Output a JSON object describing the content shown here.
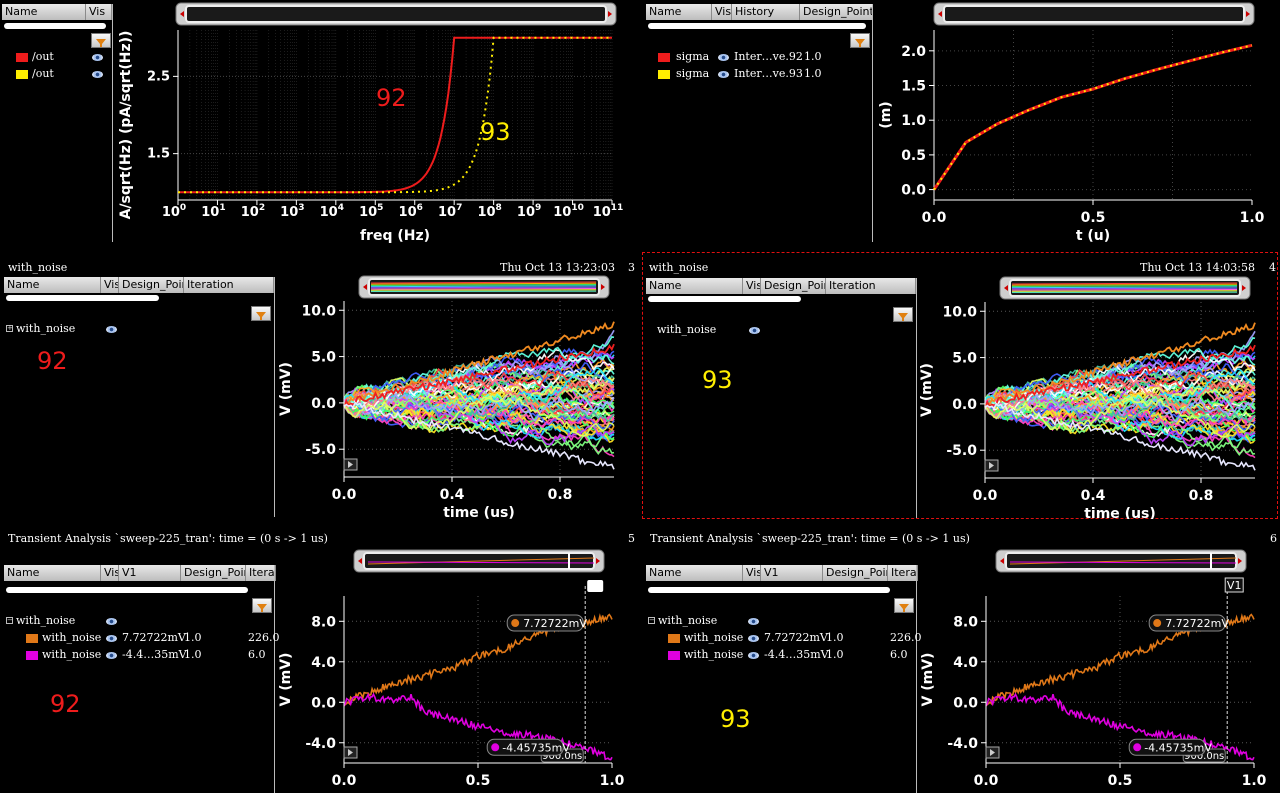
{
  "colors": {
    "red": "#ee1c1c",
    "yellow": "#ffee00",
    "orange": "#e07818",
    "magenta": "#e000e0",
    "bg": "#000000"
  },
  "p1": {
    "legend_cols": [
      "Name",
      "Vis"
    ],
    "rows": [
      {
        "name": "/out",
        "color": "#ee1c1c"
      },
      {
        "name": "/out",
        "color": "#ffee00"
      }
    ],
    "label_red": "92",
    "label_yellow": "93",
    "chart_data": {
      "type": "line",
      "xlabel": "freq (Hz)",
      "ylabel": "A/sqrt(Hz) (pA/sqrt(Hz))",
      "x_scale": "log",
      "x_ticks": [
        "10^0",
        "10^1",
        "10^2",
        "10^3",
        "10^4",
        "10^5",
        "10^6",
        "10^7",
        "10^8",
        "10^9",
        "10^10",
        "10^11"
      ],
      "y_ticks": [
        "1.5",
        "2.5"
      ],
      "ylim": [
        0.9,
        3.1
      ],
      "series": [
        {
          "color": "#ee1c1c",
          "style": "solid",
          "x": [
            1,
            100000,
            1000000,
            3000000,
            10000000,
            100000000000
          ],
          "values": [
            1.0,
            1.02,
            1.2,
            1.8,
            3.0,
            3.0
          ]
        },
        {
          "color": "#ffee00",
          "style": "dotted",
          "x": [
            1,
            1000000,
            10000000,
            30000000,
            100000000,
            100000000000
          ],
          "values": [
            1.0,
            1.02,
            1.2,
            1.8,
            3.0,
            3.0
          ]
        }
      ]
    }
  },
  "p2": {
    "legend_cols": [
      "Name",
      "Vis",
      "History",
      "Design_Point"
    ],
    "rows": [
      {
        "name": "sigma",
        "history": "Inter…ve.92",
        "dp": "1.0",
        "color": "#ee1c1c"
      },
      {
        "name": "sigma",
        "history": "Inter…ve.93",
        "dp": "1.0",
        "color": "#ffee00"
      }
    ],
    "chart_data": {
      "type": "line",
      "xlabel": "t (u)",
      "ylabel": "(m)",
      "xlim": [
        0,
        1
      ],
      "ylim": [
        -0.15,
        2.3
      ],
      "x_ticks": [
        "0.0",
        "0.5",
        "1.0"
      ],
      "y_ticks": [
        "0.0",
        "0.5",
        "1.0",
        "1.5",
        "2.0"
      ],
      "series": [
        {
          "color": "#ee1c1c",
          "style": "solid",
          "x": [
            0,
            0.1,
            0.2,
            0.3,
            0.4,
            0.5,
            0.6,
            0.7,
            0.8,
            0.9,
            1.0
          ],
          "values": [
            0.0,
            0.68,
            0.95,
            1.15,
            1.33,
            1.45,
            1.6,
            1.73,
            1.85,
            1.97,
            2.08
          ]
        },
        {
          "color": "#ffee00",
          "style": "dotted",
          "x": [
            0,
            0.1,
            0.2,
            0.3,
            0.4,
            0.5,
            0.6,
            0.7,
            0.8,
            0.9,
            1.0
          ],
          "values": [
            0.0,
            0.68,
            0.95,
            1.15,
            1.33,
            1.45,
            1.6,
            1.73,
            1.85,
            1.97,
            2.08
          ]
        }
      ]
    }
  },
  "p3": {
    "title": "with_noise",
    "timestamp": "Thu Oct 13 13:23:03",
    "index": "3",
    "legend_cols": [
      "Name",
      "Vis",
      "Design_Point",
      "Iteration"
    ],
    "tree_label": "with_noise",
    "big_label": "92",
    "chart_data": {
      "type": "line",
      "xlabel": "time (us)",
      "ylabel": "V (mV)",
      "xlim": [
        0,
        1
      ],
      "ylim": [
        -8,
        11
      ],
      "x_ticks": [
        "0.0",
        "0.4",
        "0.8"
      ],
      "y_ticks": [
        "10.0",
        "5.0",
        "0.0",
        "-5.0"
      ],
      "note": "Monte Carlo random-walk traces; upper envelope ends near 8.5 mV, lower near -7 mV"
    }
  },
  "p4": {
    "title": "with_noise",
    "timestamp": "Thu Oct 13 14:03:58",
    "index": "4",
    "legend_cols": [
      "Name",
      "Vis",
      "Design_Point",
      "Iteration"
    ],
    "tree_label": "with_noise",
    "big_label": "93",
    "chart_data": {
      "type": "line",
      "xlabel": "time (us)",
      "ylabel": "V (mV)",
      "xlim": [
        0,
        1
      ],
      "ylim": [
        -8,
        11
      ],
      "x_ticks": [
        "0.0",
        "0.4",
        "0.8"
      ],
      "y_ticks": [
        "10.0",
        "5.0",
        "0.0",
        "-5.0"
      ]
    }
  },
  "p5": {
    "title": "Transient Analysis `sweep-225_tran': time = (0 s -> 1 us)",
    "index": "5",
    "legend_cols": [
      "Name",
      "Vis",
      "V1",
      "Design_Point",
      "Iteration"
    ],
    "tree_label": "with_noise",
    "rows": [
      {
        "name": "with_noise",
        "v1": "7.72722mV",
        "dp": "1.0",
        "iter": "226.0",
        "color": "#e07818"
      },
      {
        "name": "with_noise",
        "v1": "-4.4…35mV",
        "dp": "1.0",
        "iter": "6.0",
        "color": "#e000e0"
      }
    ],
    "big_label": "92",
    "marker_top": "7.72722mV",
    "marker_bot": "-4.45735mV",
    "cursor_label": "900.0ns",
    "cursor_name": "",
    "chart_data": {
      "type": "line",
      "xlabel": "time (us)",
      "ylabel": "V (mV)",
      "xlim": [
        0,
        1
      ],
      "ylim": [
        -6,
        10.5
      ],
      "x_ticks": [
        "0.0",
        "0.5",
        "1.0"
      ],
      "y_ticks": [
        "8.0",
        "4.0",
        "0.0",
        "-4.0"
      ],
      "series": [
        {
          "color": "#e07818",
          "x": [
            0,
            0.1,
            0.2,
            0.3,
            0.4,
            0.5,
            0.6,
            0.7,
            0.8,
            0.9,
            1.0
          ],
          "values": [
            0.0,
            1.0,
            2.0,
            2.6,
            3.3,
            4.6,
            5.3,
            6.5,
            7.5,
            7.8,
            8.5
          ]
        },
        {
          "color": "#e000e0",
          "x": [
            0,
            0.1,
            0.2,
            0.25,
            0.3,
            0.4,
            0.5,
            0.6,
            0.7,
            0.8,
            0.9,
            1.0
          ],
          "values": [
            0.0,
            0.5,
            0.3,
            0.6,
            -1.0,
            -1.6,
            -2.4,
            -3.0,
            -3.3,
            -3.8,
            -4.45,
            -5.6
          ]
        }
      ]
    }
  },
  "p6": {
    "title": "Transient Analysis `sweep-225_tran': time = (0 s -> 1 us)",
    "index": "6",
    "legend_cols": [
      "Name",
      "Vis",
      "V1",
      "Design_Point",
      "Iteration"
    ],
    "tree_label": "with_noise",
    "rows": [
      {
        "name": "with_noise",
        "v1": "7.72722mV",
        "dp": "1.0",
        "iter": "226.0",
        "color": "#e07818"
      },
      {
        "name": "with_noise",
        "v1": "-4.4…35mV",
        "dp": "1.0",
        "iter": "6.0",
        "color": "#e000e0"
      }
    ],
    "big_label": "93",
    "marker_top": "7.72722mV",
    "marker_bot": "-4.45735mV",
    "cursor_label": "900.0ns",
    "cursor_name": "V1",
    "chart_data": {
      "type": "line",
      "xlabel": "time (us)",
      "ylabel": "V (mV)",
      "xlim": [
        0,
        1
      ],
      "ylim": [
        -6,
        10.5
      ],
      "x_ticks": [
        "0.0",
        "0.5",
        "1.0"
      ],
      "y_ticks": [
        "8.0",
        "4.0",
        "0.0",
        "-4.0"
      ],
      "series": [
        {
          "color": "#e07818",
          "x": [
            0,
            0.1,
            0.2,
            0.3,
            0.4,
            0.5,
            0.6,
            0.7,
            0.8,
            0.9,
            1.0
          ],
          "values": [
            0.0,
            1.0,
            2.0,
            2.6,
            3.3,
            4.6,
            5.3,
            6.5,
            7.5,
            7.8,
            8.5
          ]
        },
        {
          "color": "#e000e0",
          "x": [
            0,
            0.1,
            0.2,
            0.25,
            0.3,
            0.4,
            0.5,
            0.6,
            0.7,
            0.8,
            0.9,
            1.0
          ],
          "values": [
            0.0,
            0.5,
            0.3,
            0.6,
            -1.0,
            -1.6,
            -2.4,
            -3.0,
            -3.3,
            -3.8,
            -4.45,
            -5.6
          ]
        }
      ]
    }
  }
}
